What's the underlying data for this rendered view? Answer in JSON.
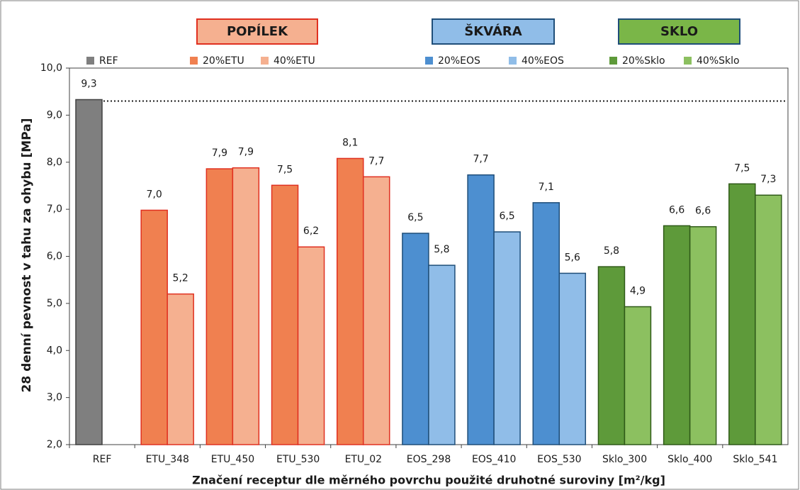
{
  "chart_data": {
    "type": "bar",
    "y_label": "28 denní pevnost v tahu za ohybu  [MPa]",
    "x_label": "Značení receptur dle měrného povrchu použité druhotné suroviny [m²/kg]",
    "annotations": [
      {
        "text": "POPÍLEK",
        "fill": "#f5b090",
        "stroke": "#e03020",
        "color": "#c00000"
      },
      {
        "text": "ŠKVÁRA",
        "fill": "#90bde8",
        "stroke": "#1f4e79",
        "color": "#1a1a1a"
      },
      {
        "text": "SKLO",
        "fill": "#7ab648",
        "stroke": "#1f4e79",
        "color": "#1a1a1a"
      }
    ],
    "categories": [
      "REF",
      "ETU_348",
      "ETU_450",
      "ETU_530",
      "ETU_02",
      "EOS_298",
      "EOS_410",
      "EOS_530",
      "Sklo_300",
      "Sklo_400",
      "Sklo_541"
    ],
    "series": [
      {
        "name": "REF",
        "color": "#7f7f7f",
        "stroke": "#404040",
        "values": [
          9.33,
          null,
          null,
          null,
          null,
          null,
          null,
          null,
          null,
          null,
          null
        ],
        "value_labels": [
          "9,3",
          null,
          null,
          null,
          null,
          null,
          null,
          null,
          null,
          null,
          null
        ]
      },
      {
        "name": "20%ETU",
        "color": "#f08050",
        "stroke": "#e03020",
        "values": [
          null,
          6.98,
          7.86,
          7.51,
          8.08,
          null,
          null,
          null,
          null,
          null,
          null
        ],
        "value_labels": [
          null,
          "7,0",
          "7,9",
          "7,5",
          "8,1",
          null,
          null,
          null,
          null,
          null,
          null
        ]
      },
      {
        "name": "40%ETU",
        "color": "#f5b090",
        "stroke": "#e03020",
        "values": [
          null,
          5.2,
          7.88,
          6.2,
          7.69,
          null,
          null,
          null,
          null,
          null,
          null
        ],
        "value_labels": [
          null,
          "5,2",
          "7,9",
          "6,2",
          "7,7",
          null,
          null,
          null,
          null,
          null,
          null
        ]
      },
      {
        "name": "20%EOS",
        "color": "#4d8fd0",
        "stroke": "#1f4e79",
        "values": [
          null,
          null,
          null,
          null,
          null,
          6.49,
          7.73,
          7.14,
          null,
          null,
          null
        ],
        "value_labels": [
          null,
          null,
          null,
          null,
          null,
          "6,5",
          "7,7",
          "7,1",
          null,
          null,
          null
        ]
      },
      {
        "name": "40%EOS",
        "color": "#90bde8",
        "stroke": "#1f4e79",
        "values": [
          null,
          null,
          null,
          null,
          null,
          5.81,
          6.52,
          5.64,
          null,
          null,
          null
        ],
        "value_labels": [
          null,
          null,
          null,
          null,
          null,
          "5,8",
          "6,5",
          "5,6",
          null,
          null,
          null
        ]
      },
      {
        "name": "20%Sklo",
        "color": "#5e9a3a",
        "stroke": "#2f5a18",
        "values": [
          null,
          null,
          null,
          null,
          null,
          null,
          null,
          null,
          5.78,
          6.65,
          7.54
        ],
        "value_labels": [
          null,
          null,
          null,
          null,
          null,
          null,
          null,
          null,
          "5,8",
          "6,6",
          "7,5"
        ]
      },
      {
        "name": "40%Sklo",
        "color": "#8cc060",
        "stroke": "#2f5a18",
        "values": [
          null,
          null,
          null,
          null,
          null,
          null,
          null,
          null,
          4.93,
          6.63,
          7.3
        ],
        "value_labels": [
          null,
          null,
          null,
          null,
          null,
          null,
          null,
          null,
          "4,9",
          "6,6",
          "7,3"
        ]
      }
    ],
    "reference_line": 9.3,
    "ylim": [
      2,
      10
    ],
    "yticks": [
      {
        "value": 2,
        "label": "2,0"
      },
      {
        "value": 3,
        "label": "3,0"
      },
      {
        "value": 4,
        "label": "4,0"
      },
      {
        "value": 5,
        "label": "5,0"
      },
      {
        "value": 6,
        "label": "6,0"
      },
      {
        "value": 7,
        "label": "7,0"
      },
      {
        "value": 8,
        "label": "8,0"
      },
      {
        "value": 9,
        "label": "9,0"
      },
      {
        "value": 10,
        "label": "10,0"
      }
    ]
  }
}
